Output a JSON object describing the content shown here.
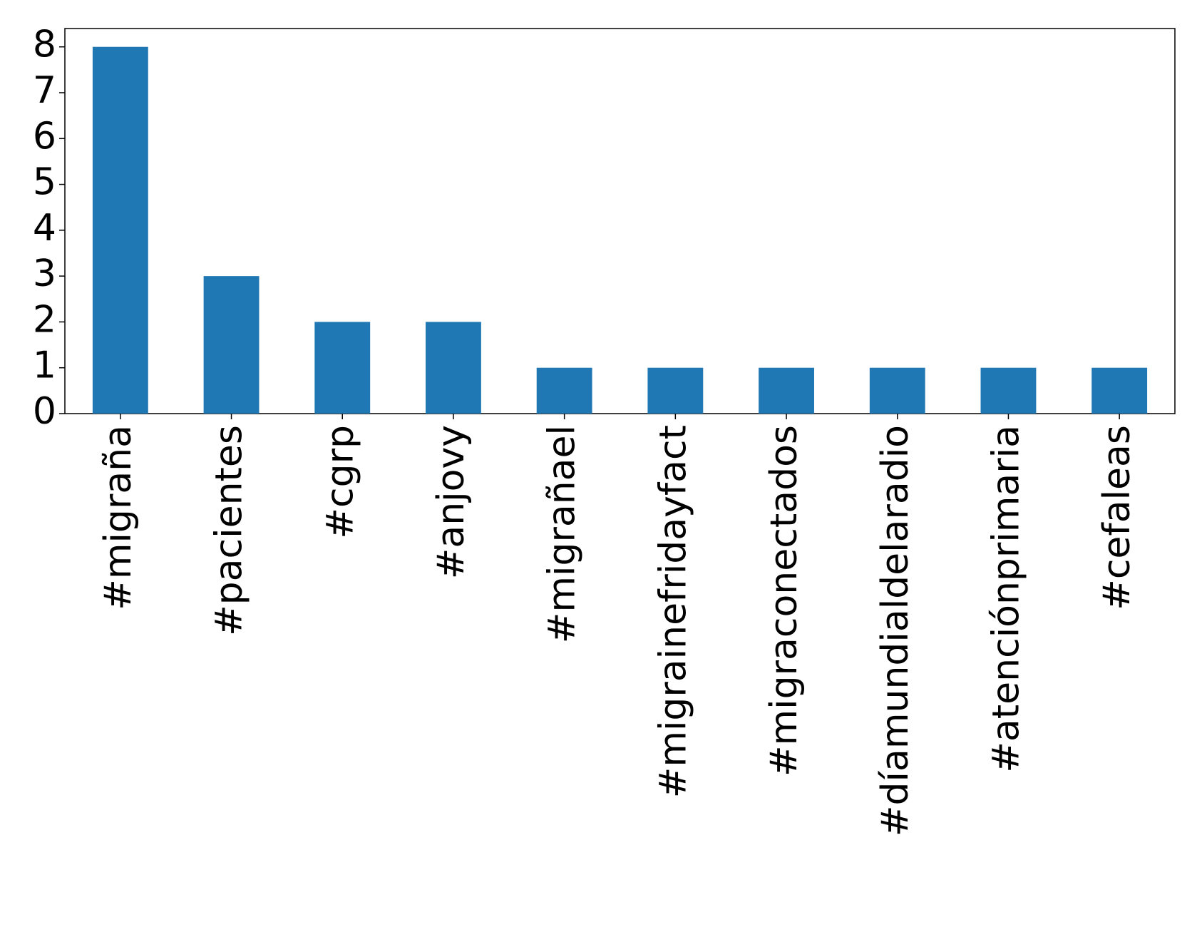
{
  "chart_data": {
    "type": "bar",
    "categories": [
      "#migraña",
      "#pacientes",
      "#cgrp",
      "#anjovy",
      "#migrañael",
      "#migrainefridayfact",
      "#migraconectados",
      "#díamundialdelaradio",
      "#atenciónprimaria",
      "#cefaleas"
    ],
    "values": [
      8,
      3,
      2,
      2,
      1,
      1,
      1,
      1,
      1,
      1
    ],
    "color": "#1f77b4",
    "ylim": [
      0,
      8.4
    ],
    "yticks": [
      0,
      1,
      2,
      3,
      4,
      5,
      6,
      7,
      8
    ],
    "grid": false
  }
}
